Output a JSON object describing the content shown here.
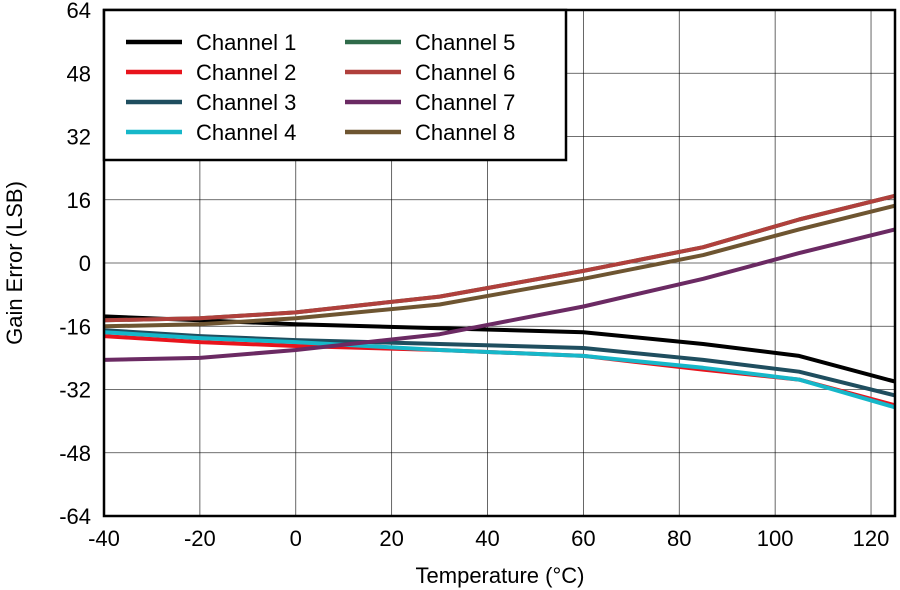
{
  "chart_data": {
    "type": "line",
    "title": "",
    "xlabel": "Temperature (°C)",
    "ylabel": "Gain Error (LSB)",
    "xlim": [
      -40,
      125
    ],
    "ylim": [
      -64,
      64
    ],
    "x_ticks": [
      -40,
      -20,
      0,
      20,
      40,
      60,
      80,
      100,
      120
    ],
    "y_ticks": [
      64,
      48,
      32,
      16,
      0,
      -16,
      -32,
      -48,
      -64
    ],
    "grid": true,
    "legend_position": "top-left",
    "series": [
      {
        "name": "Channel 1",
        "color": "#000000",
        "points": [
          [
            -40,
            -13.5
          ],
          [
            -20,
            -14.5
          ],
          [
            0,
            -15.5
          ],
          [
            30,
            -16.5
          ],
          [
            60,
            -17.5
          ],
          [
            85,
            -20.5
          ],
          [
            105,
            -23.5
          ],
          [
            125,
            -30
          ]
        ]
      },
      {
        "name": "Channel 2",
        "color": "#e8141c",
        "points": [
          [
            -40,
            -18.5
          ],
          [
            -20,
            -20
          ],
          [
            0,
            -21
          ],
          [
            30,
            -22
          ],
          [
            60,
            -23.5
          ],
          [
            85,
            -27
          ],
          [
            105,
            -29.5
          ],
          [
            125,
            -36
          ]
        ]
      },
      {
        "name": "Channel 3",
        "color": "#1f4e5f",
        "points": [
          [
            -40,
            -17
          ],
          [
            -20,
            -18.5
          ],
          [
            0,
            -19.5
          ],
          [
            30,
            -20.5
          ],
          [
            60,
            -21.5
          ],
          [
            85,
            -24.5
          ],
          [
            105,
            -27.5
          ],
          [
            125,
            -33.5
          ]
        ]
      },
      {
        "name": "Channel 4",
        "color": "#16b7c9",
        "points": [
          [
            -40,
            -17.5
          ],
          [
            -20,
            -19
          ],
          [
            0,
            -20
          ],
          [
            30,
            -22
          ],
          [
            60,
            -23.5
          ],
          [
            85,
            -26.5
          ],
          [
            105,
            -29.5
          ],
          [
            125,
            -36.5
          ]
        ]
      },
      {
        "name": "Channel 5",
        "color": "#2f6b4a",
        "points": [
          [
            -40,
            -14.5
          ],
          [
            -20,
            -14
          ],
          [
            0,
            -12.5
          ],
          [
            30,
            -8.5
          ],
          [
            60,
            -2
          ],
          [
            85,
            4
          ],
          [
            105,
            11
          ],
          [
            125,
            17
          ]
        ]
      },
      {
        "name": "Channel 6",
        "color": "#b0403c",
        "points": [
          [
            -40,
            -14.5
          ],
          [
            -20,
            -14
          ],
          [
            0,
            -12.5
          ],
          [
            30,
            -8.5
          ],
          [
            60,
            -2
          ],
          [
            85,
            4
          ],
          [
            105,
            11
          ],
          [
            125,
            17
          ]
        ]
      },
      {
        "name": "Channel 7",
        "color": "#6b2a63",
        "points": [
          [
            -40,
            -24.5
          ],
          [
            -20,
            -24
          ],
          [
            0,
            -22
          ],
          [
            30,
            -18
          ],
          [
            60,
            -11
          ],
          [
            85,
            -4
          ],
          [
            105,
            2.5
          ],
          [
            125,
            8.5
          ]
        ]
      },
      {
        "name": "Channel 8",
        "color": "#6e5531",
        "points": [
          [
            -40,
            -16
          ],
          [
            -20,
            -15.5
          ],
          [
            0,
            -14
          ],
          [
            30,
            -10.5
          ],
          [
            60,
            -4
          ],
          [
            85,
            2
          ],
          [
            105,
            8.5
          ],
          [
            125,
            14.5
          ]
        ]
      }
    ]
  }
}
